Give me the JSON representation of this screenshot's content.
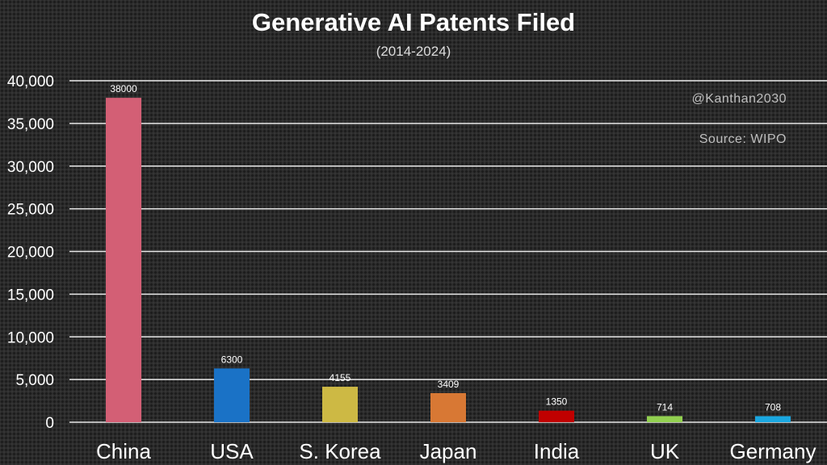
{
  "chart_data": {
    "type": "bar",
    "title": "Generative AI Patents Filed",
    "subtitle": "(2014-2024)",
    "categories": [
      "China",
      "USA",
      "S. Korea",
      "Japan",
      "India",
      "UK",
      "Germany"
    ],
    "values": [
      38000,
      6300,
      4155,
      3409,
      1350,
      714,
      708
    ],
    "colors": [
      "#d35f75",
      "#1a72c6",
      "#cdb944",
      "#d87834",
      "#c00000",
      "#92d050",
      "#1aa7e0"
    ],
    "ylim": [
      0,
      40000
    ],
    "yticks": [
      0,
      5000,
      10000,
      15000,
      20000,
      25000,
      30000,
      35000,
      40000
    ],
    "ytick_labels": [
      "0",
      "5,000",
      "10,000",
      "15,000",
      "20,000",
      "25,000",
      "30,000",
      "35,000",
      "40,000"
    ],
    "grid": true,
    "xlabel": "",
    "ylabel": "",
    "annotations": [
      "@Kanthan2030",
      "Source: WIPO"
    ]
  }
}
